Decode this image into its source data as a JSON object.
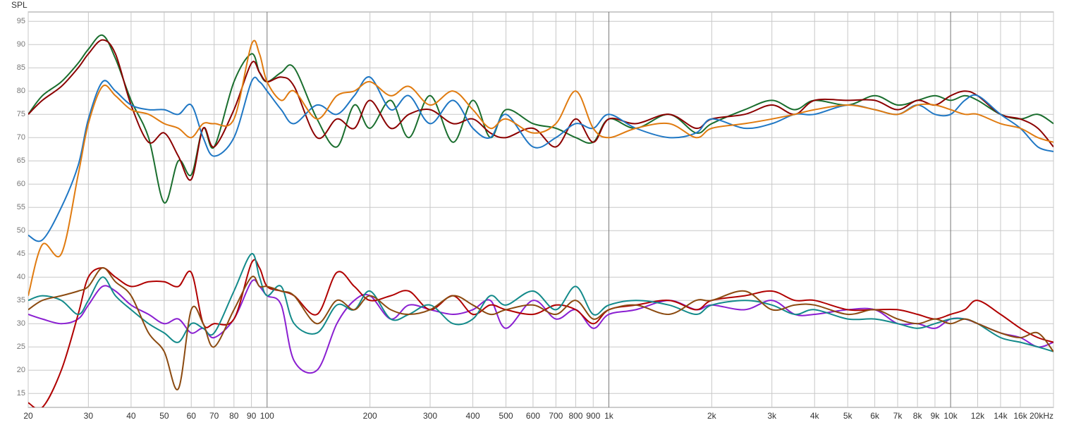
{
  "chart_data": {
    "type": "line",
    "y_label": "SPL",
    "log_x": true,
    "grid": true,
    "xlim": [
      20,
      20000
    ],
    "ylim": [
      12,
      97
    ],
    "yticks": [
      15,
      20,
      25,
      30,
      35,
      40,
      45,
      50,
      55,
      60,
      65,
      70,
      75,
      80,
      85,
      90,
      95
    ],
    "xticks": [
      20,
      30,
      40,
      50,
      60,
      70,
      80,
      90,
      100,
      200,
      300,
      400,
      500,
      600,
      700,
      800,
      900,
      {
        "value": 1000,
        "label": "1k"
      },
      {
        "value": 2000,
        "label": "2k"
      },
      {
        "value": 3000,
        "label": "3k"
      },
      {
        "value": 4000,
        "label": "4k"
      },
      {
        "value": 5000,
        "label": "5k"
      },
      {
        "value": 6000,
        "label": "6k"
      },
      {
        "value": 7000,
        "label": "7k"
      },
      {
        "value": 8000,
        "label": "8k"
      },
      {
        "value": 9000,
        "label": "9k"
      },
      {
        "value": 10000,
        "label": "10k"
      },
      {
        "value": 12000,
        "label": "12k"
      },
      {
        "value": 14000,
        "label": "14k"
      },
      {
        "value": 16000,
        "label": "16k"
      },
      {
        "value": 20000,
        "label": "20kHz"
      }
    ],
    "x": [
      20,
      22,
      25,
      28,
      30,
      33,
      36,
      40,
      45,
      50,
      55,
      60,
      65,
      70,
      80,
      90,
      95,
      100,
      110,
      120,
      140,
      160,
      180,
      200,
      230,
      260,
      300,
      350,
      400,
      450,
      500,
      600,
      700,
      800,
      900,
      1000,
      1200,
      1500,
      1800,
      2000,
      2500,
      3000,
      3500,
      4000,
      5000,
      6000,
      7000,
      8000,
      9000,
      10000,
      11000,
      12000,
      14000,
      16000,
      18000,
      20000
    ],
    "series": [
      {
        "color": "#1a6e2e",
        "values": [
          75,
          79,
          82,
          86,
          89,
          92,
          87,
          78,
          70,
          56,
          65,
          62,
          72,
          68,
          82,
          88,
          84,
          82,
          84,
          85,
          74,
          68,
          77,
          72,
          78,
          70,
          79,
          69,
          78,
          70,
          76,
          73,
          72,
          70,
          69,
          74,
          72,
          75,
          71,
          73,
          76,
          78,
          76,
          78,
          77,
          79,
          77,
          78,
          79,
          78,
          79,
          78,
          75,
          74,
          75,
          73
        ]
      },
      {
        "color": "#8b0000",
        "values": [
          75,
          78,
          81,
          85,
          88,
          91,
          88,
          77,
          69,
          71,
          66,
          61,
          72,
          68,
          76,
          86,
          84,
          82,
          83,
          81,
          70,
          74,
          72,
          78,
          72,
          75,
          76,
          73,
          74,
          71,
          70,
          72,
          68,
          74,
          69,
          74,
          73,
          75,
          72,
          74,
          75,
          77,
          75,
          78,
          78,
          78,
          76,
          78,
          77,
          79,
          80,
          79,
          75,
          74,
          72,
          68
        ]
      },
      {
        "color": "#1f77c4",
        "values": [
          49,
          48,
          55,
          64,
          74,
          82,
          80,
          77,
          76,
          76,
          75,
          77,
          70,
          66,
          70,
          82,
          82,
          80,
          76,
          73,
          77,
          75,
          79,
          83,
          76,
          79,
          73,
          78,
          72,
          70,
          75,
          68,
          70,
          73,
          72,
          75,
          72,
          70,
          71,
          74,
          72,
          73,
          75,
          75,
          77,
          76,
          75,
          77,
          75,
          75,
          78,
          79,
          75,
          72,
          68,
          67
        ]
      },
      {
        "color": "#e07b10",
        "values": [
          36,
          47,
          45,
          62,
          73,
          81,
          79,
          76,
          75,
          73,
          72,
          70,
          73,
          73,
          74,
          90,
          88,
          82,
          78,
          80,
          74,
          79,
          80,
          82,
          79,
          81,
          77,
          80,
          76,
          72,
          74,
          71,
          73,
          80,
          72,
          70,
          72,
          73,
          70,
          72,
          73,
          74,
          75,
          76,
          77,
          76,
          75,
          77,
          77,
          76,
          75,
          75,
          73,
          72,
          70,
          69
        ]
      },
      {
        "color": "#8a1fd1",
        "values": [
          32,
          31,
          30,
          31,
          34,
          38,
          37,
          34,
          32,
          30,
          31,
          28,
          29,
          27,
          31,
          39,
          38,
          36,
          34,
          22,
          20,
          30,
          35,
          36,
          31,
          34,
          33,
          32,
          33,
          35,
          29,
          35,
          31,
          33,
          29,
          32,
          33,
          35,
          33,
          34,
          33,
          35,
          32,
          32,
          33,
          33,
          30,
          30,
          29,
          31,
          31,
          30,
          28,
          27,
          25,
          26
        ]
      },
      {
        "color": "#b00000",
        "values": [
          13,
          12,
          20,
          32,
          40,
          42,
          40,
          38,
          39,
          39,
          38,
          41,
          30,
          30,
          31,
          43,
          42,
          38,
          37,
          36,
          32,
          41,
          38,
          35,
          36,
          37,
          33,
          36,
          32,
          34,
          33,
          32,
          34,
          33,
          30,
          33,
          34,
          35,
          33,
          35,
          36,
          37,
          35,
          35,
          33,
          33,
          33,
          32,
          31,
          32,
          33,
          35,
          32,
          29,
          27,
          26
        ]
      },
      {
        "color": "#138a8a",
        "values": [
          35,
          36,
          35,
          32,
          35,
          40,
          36,
          33,
          30,
          28,
          26,
          30,
          29,
          28,
          37,
          45,
          40,
          36,
          38,
          30,
          28,
          34,
          33,
          37,
          31,
          32,
          34,
          30,
          31,
          36,
          34,
          37,
          33,
          38,
          32,
          34,
          35,
          34,
          32,
          34,
          35,
          34,
          32,
          33,
          31,
          31,
          30,
          29,
          30,
          31,
          31,
          30,
          27,
          26,
          25,
          24
        ]
      },
      {
        "color": "#8b4a10",
        "values": [
          33,
          35,
          36,
          37,
          38,
          42,
          39,
          36,
          28,
          24,
          16,
          33,
          30,
          25,
          33,
          40,
          38,
          38,
          37,
          36,
          30,
          35,
          33,
          36,
          33,
          32,
          33,
          36,
          34,
          32,
          33,
          34,
          32,
          35,
          31,
          33,
          34,
          32,
          35,
          35,
          37,
          33,
          34,
          34,
          32,
          33,
          31,
          30,
          31,
          30,
          31,
          30,
          28,
          27,
          28,
          24
        ]
      }
    ]
  }
}
